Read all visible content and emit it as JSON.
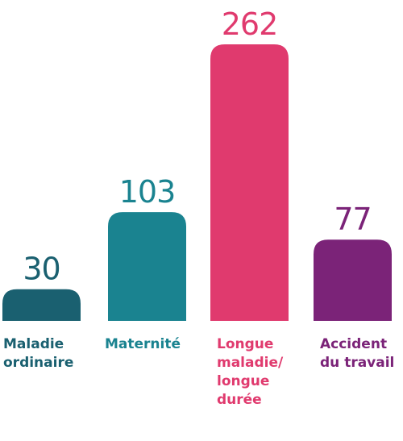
{
  "chart_data": {
    "type": "bar",
    "categories": [
      [
        "Maladie",
        "ordinaire"
      ],
      [
        "Maternité"
      ],
      [
        "Longue",
        "maladie/",
        "longue",
        "durée"
      ],
      [
        "Accident",
        "du travail"
      ]
    ],
    "values": [
      30,
      103,
      262,
      77
    ],
    "value_labels": [
      "30",
      "103",
      "262",
      "77"
    ],
    "colors": [
      "#1a6070",
      "#1a8390",
      "#e03a6e",
      "#7b2378"
    ],
    "title": "",
    "xlabel": "",
    "ylabel": "",
    "ylim": [
      0,
      262
    ],
    "grid": false,
    "legend": "none"
  }
}
